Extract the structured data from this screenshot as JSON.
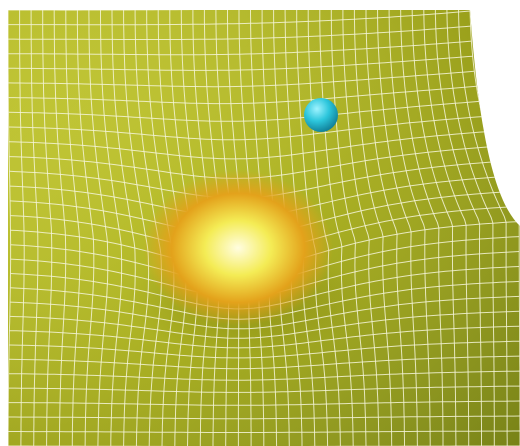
{
  "scene": {
    "subject": "curved-spacetime-grid",
    "colors": {
      "background": "#ffffff",
      "sheet_base": "#a7ad1a",
      "sheet_light": "#d8dc3a",
      "sheet_dark": "#7f8a14",
      "grid_line": "#f4f5d8",
      "star_core": "#fffde0",
      "star_glow": "#f4ec55",
      "star_warm": "#e3a21b",
      "planet_highlight": "#9ff3ff",
      "planet_mid": "#2cc6dc",
      "planet_shadow": "#0f7c95"
    },
    "grid_density": {
      "columns": 40,
      "rows": 30
    }
  }
}
